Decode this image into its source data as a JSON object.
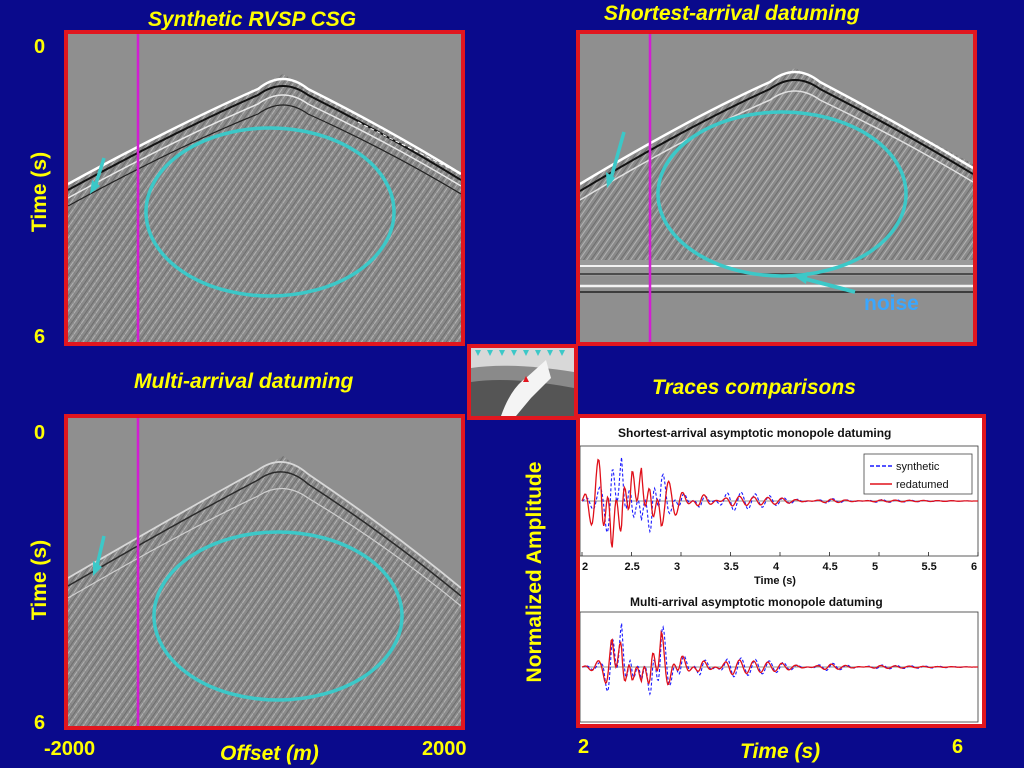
{
  "panels": {
    "top_left": {
      "title": "Synthetic RVSP CSG"
    },
    "top_right": {
      "title": "Shortest-arrival datuming",
      "annotation": "noise"
    },
    "bottom_left": {
      "title": "Multi-arrival datuming"
    },
    "bottom_right": {
      "title": "Traces comparisons"
    }
  },
  "seismic_axes": {
    "ylabel": "Time (s)",
    "y_top": "0",
    "y_bottom": "6",
    "x_left": "-2000",
    "x_right": "2000",
    "xlabel": "Offset (m)"
  },
  "trace_axes": {
    "ylabel": "Normalized Amplitude",
    "x_left": "2",
    "x_right": "6",
    "xlabel": "Time (s)"
  },
  "colors": {
    "background": "#0a0a8c",
    "frame": "#e1161f",
    "title": "#ffff00",
    "ellipse": "#3cc8c8",
    "marker": "#d21ed2",
    "synthetic": "#1a1aff",
    "redatumed": "#e0101a"
  },
  "chart_data": [
    {
      "type": "line",
      "title": "Shortest-arrival asymptotic monopole datuming",
      "xlabel": "Time (s)",
      "xlim": [
        2,
        6
      ],
      "xticks": [
        "2",
        "2.5",
        "3",
        "3.5",
        "4",
        "4.5",
        "5",
        "5.5",
        "6"
      ],
      "legend_position": "top-right",
      "series": [
        {
          "name": "synthetic",
          "style": "dashed",
          "x": [
            2.0,
            2.2,
            2.3,
            2.4,
            2.5,
            2.6,
            2.7,
            2.8,
            3.0,
            3.2,
            3.5,
            4.0,
            4.5,
            5.0,
            5.5,
            6.0
          ],
          "y": [
            0,
            0.3,
            0.9,
            -0.9,
            0.6,
            -0.4,
            0.8,
            -0.6,
            0.2,
            -0.15,
            0.2,
            0.08,
            -0.05,
            0.03,
            0.01,
            0
          ]
        },
        {
          "name": "redatumed",
          "style": "solid",
          "x": [
            2.0,
            2.2,
            2.3,
            2.4,
            2.5,
            2.6,
            2.7,
            2.8,
            3.0,
            3.2,
            3.5,
            4.0,
            4.5,
            5.0,
            5.5,
            6.0
          ],
          "y": [
            0,
            1.0,
            -1.0,
            0.9,
            -0.8,
            0.7,
            -0.6,
            0.5,
            0.2,
            -0.15,
            0.1,
            0.06,
            -0.04,
            0.02,
            0.01,
            0
          ]
        }
      ]
    },
    {
      "type": "line",
      "title": "Multi-arrival asymptotic monopole datuming",
      "xlim": [
        2,
        6
      ],
      "series": [
        {
          "name": "synthetic",
          "style": "dashed",
          "x": [
            2.0,
            2.2,
            2.3,
            2.4,
            2.5,
            2.6,
            2.7,
            2.8,
            3.0,
            3.2,
            3.5,
            4.0,
            4.5,
            5.0,
            5.5,
            6.0
          ],
          "y": [
            0,
            0.1,
            0.8,
            -0.9,
            0.4,
            -0.3,
            0.7,
            -0.9,
            0.3,
            -0.2,
            0.2,
            0.1,
            -0.08,
            0.04,
            0.02,
            0
          ]
        },
        {
          "name": "redatumed",
          "style": "solid",
          "x": [
            2.0,
            2.2,
            2.3,
            2.4,
            2.5,
            2.6,
            2.7,
            2.8,
            3.0,
            3.2,
            3.5,
            4.0,
            4.5,
            5.0,
            5.5,
            6.0
          ],
          "y": [
            0,
            0.15,
            0.6,
            -0.7,
            0.35,
            -0.3,
            0.6,
            -0.7,
            0.25,
            -0.15,
            0.15,
            0.08,
            -0.06,
            0.03,
            0.01,
            0
          ]
        }
      ]
    }
  ]
}
